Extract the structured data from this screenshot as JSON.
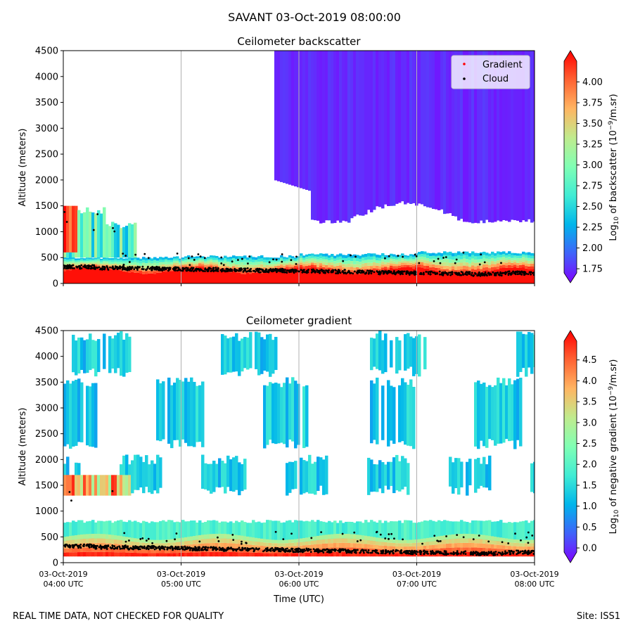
{
  "figure": {
    "title": "SAVANT 03-Oct-2019 08:00:00",
    "footer_left": "REAL TIME DATA, NOT CHECKED FOR QUALITY",
    "footer_right": "Site: ISS1"
  },
  "palette": [
    "#7f00ff",
    "#4062fa",
    "#00b5eb",
    "#40ecd4",
    "#80ffb4",
    "#c0eb8d",
    "#ffb562",
    "#ff6232",
    "#ff0000"
  ],
  "chart_data": [
    {
      "type": "heatmap",
      "title": "Ceilometer backscatter",
      "xlabel": "",
      "ylabel": "Altitude (meters)",
      "xlim": [
        "03-Oct-2019 04:00",
        "03-Oct-2019 08:00"
      ],
      "ylim": [
        0,
        4500
      ],
      "y_ticks": [
        0,
        500,
        1000,
        1500,
        2000,
        2500,
        3000,
        3500,
        4000,
        4500
      ],
      "x_tick_labels": [
        "",
        "",
        "",
        "",
        ""
      ],
      "grid": "vertical lines at each hour",
      "legend": {
        "placement": "upper-right",
        "entries": [
          {
            "name": "Gradient",
            "color": "#ff0000",
            "marker": "dot"
          },
          {
            "name": "Cloud",
            "color": "#000000",
            "marker": "dot"
          }
        ]
      },
      "colorbar": {
        "label": "Log10 of backscatter (10^-9/m.sr)",
        "label_parts": {
          "a": "Log",
          "a_sub": "10",
          "b": " of backscatter (10",
          "b_sup": "−9",
          "c": "/m.sr)"
        },
        "ticks": [
          "1.75",
          "2.00",
          "2.25",
          "2.50",
          "2.75",
          "3.00",
          "3.25",
          "3.50",
          "3.75",
          "4.00"
        ],
        "range": [
          1.7,
          4.25
        ],
        "extend": "both"
      },
      "features": {
        "surface_layer_top_m": 250,
        "boundary_layer_top_m": [
          500,
          520,
          560,
          600
        ],
        "upper_layer": {
          "start": "03-Oct-2019 05:40",
          "bottom_m": 1200,
          "top_m": 4500,
          "level": 1.8
        },
        "early_cloud": {
          "start": "04:00",
          "end": "04:40",
          "bottom_m": 500,
          "top_m": 1500
        }
      },
      "cloud_base_m": [
        320,
        300,
        290,
        280,
        270,
        260,
        250,
        240,
        230,
        220,
        210,
        200,
        190,
        180,
        200
      ]
    },
    {
      "type": "heatmap",
      "title": "Ceilometer gradient",
      "xlabel": "Time (UTC)",
      "ylabel": "Altitude (meters)",
      "xlim": [
        "03-Oct-2019 04:00",
        "03-Oct-2019 08:00"
      ],
      "ylim": [
        0,
        4500
      ],
      "y_ticks": [
        0,
        500,
        1000,
        1500,
        2000,
        2500,
        3000,
        3500,
        4000,
        4500
      ],
      "x_ticks": [
        {
          "line1": "03-Oct-2019",
          "line2": "04:00 UTC"
        },
        {
          "line1": "03-Oct-2019",
          "line2": "05:00 UTC"
        },
        {
          "line1": "03-Oct-2019",
          "line2": "06:00 UTC"
        },
        {
          "line1": "03-Oct-2019",
          "line2": "07:00 UTC"
        },
        {
          "line1": "03-Oct-2019",
          "line2": "08:00 UTC"
        }
      ],
      "grid": "vertical lines at each hour",
      "colorbar": {
        "label": "Log10 of negative gradient (10^-9/m.sr)",
        "label_parts": {
          "a": "Log",
          "a_sub": "10",
          "b": " of negative gradient (10",
          "b_sup": "−9",
          "c": "/m.sr)"
        },
        "ticks": [
          "0.0",
          "0.5",
          "1.0",
          "1.5",
          "2.0",
          "2.5",
          "3.0",
          "3.5",
          "4.0",
          "4.5"
        ],
        "range": [
          -0.1,
          4.95
        ],
        "extend": "both"
      },
      "features": {
        "surface_layer_top_m": 250,
        "boundary_layer_top_m": 800,
        "aerosol_layers_m": [
          [
            3700,
            4400
          ],
          [
            2300,
            3500
          ],
          [
            1400,
            2000
          ]
        ]
      }
    }
  ]
}
